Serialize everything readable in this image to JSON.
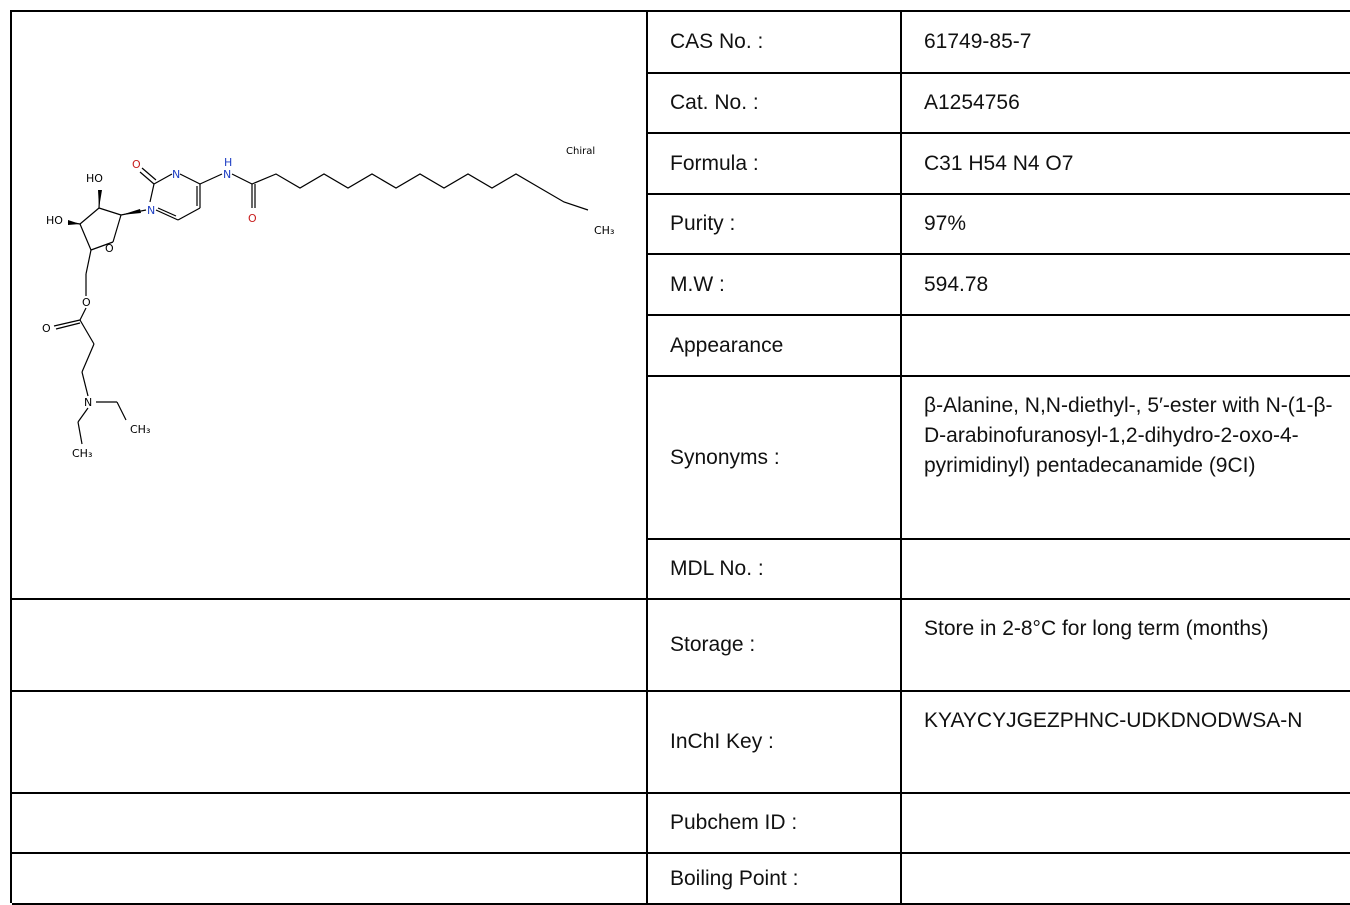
{
  "structure": {
    "chiral_label": "Chiral",
    "atoms": {
      "ho_top": "HO",
      "ho_left": "HO",
      "o_carbonyl_left": "O",
      "n_ring_top": "N",
      "nh_n": "N",
      "nh_h": "H",
      "n_ring": "N",
      "o_ring": "O",
      "o_amide": "O",
      "ch3_right": "CH₃",
      "o_ester": "O",
      "o_ester_carbonyl": "O",
      "n_amine": "N",
      "ch3_amine_right": "CH₃",
      "ch3_amine_bottom": "CH₃"
    }
  },
  "properties": [
    {
      "label": "CAS No. :",
      "value": "61749-85-7"
    },
    {
      "label": "Cat. No. :",
      "value": "A1254756"
    },
    {
      "label": "Formula :",
      "value": "C31 H54 N4 O7"
    },
    {
      "label": "Purity :",
      "value": "97%"
    },
    {
      "label": "M.W :",
      "value": "594.78"
    },
    {
      "label": "Appearance",
      "value": ""
    },
    {
      "label": "Synonyms :",
      "value": "β-Alanine, N,N-diethyl-, 5′-ester with N-(1-β-D-arabinofuranosyl-1,2-dihydro-2-oxo-4-pyrimidinyl) pentadecanamide (9CI)"
    },
    {
      "label": "MDL No. :",
      "value": ""
    },
    {
      "label": "Storage :",
      "value": "Store in 2-8°C for long term (months)"
    },
    {
      "label": "InChI Key :",
      "value": "KYAYCYJGEZPHNC-UDKDNODWSA-N"
    },
    {
      "label": "Pubchem ID :",
      "value": ""
    },
    {
      "label": "Boiling Point :",
      "value": ""
    }
  ]
}
